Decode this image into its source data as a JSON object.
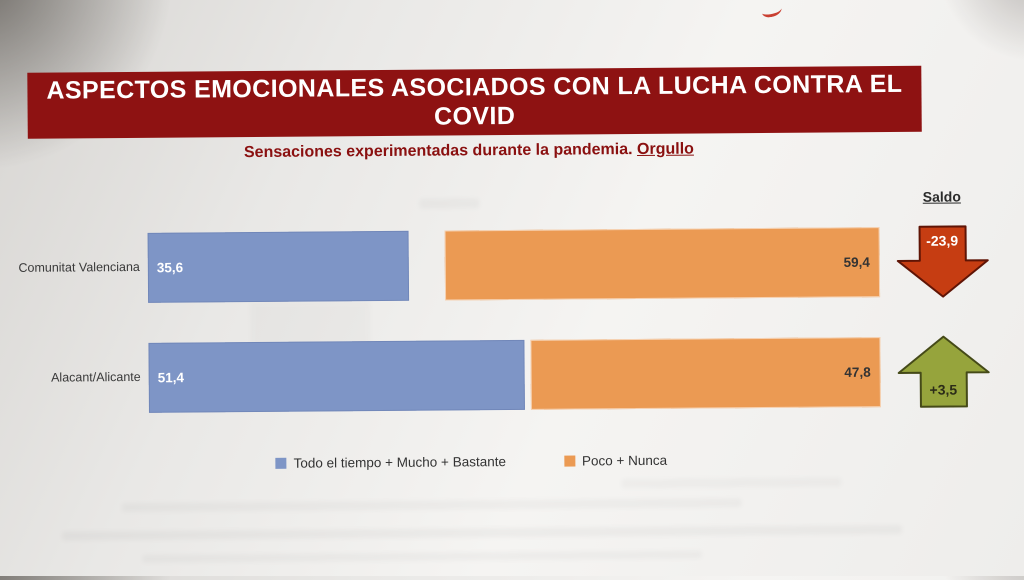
{
  "title": "ASPECTOS EMOCIONALES ASOCIADOS CON LA LUCHA CONTRA EL COVID",
  "subtitle": {
    "text": "Sensaciones experimentadas durante la pandemia. ",
    "highlight": "Orgullo"
  },
  "colors": {
    "title_bg": "#8e1212",
    "title_text": "#ffffff",
    "subtitle_text": "#8a1010",
    "blue_bar": "#7e95c6",
    "orange_bar": "#eb9a53",
    "down_arrow": "#c63d12",
    "up_arrow": "#96a43c"
  },
  "chart_data": {
    "type": "bar",
    "orientation": "horizontal",
    "title": "Sensaciones experimentadas durante la pandemia. Orgullo",
    "categories": [
      "Comunitat Valenciana",
      "Alacant/Alicante"
    ],
    "series": [
      {
        "name": "Todo el tiempo + Mucho + Bastante",
        "color": "#7e95c6",
        "values": [
          35.6,
          51.4
        ],
        "display_labels": [
          "35,6",
          "51,4"
        ]
      },
      {
        "name": "Poco + Nunca",
        "color": "#eb9a53",
        "values": [
          59.4,
          47.8
        ],
        "display_labels": [
          "59,4",
          "47,8"
        ]
      }
    ],
    "xlim": [
      0,
      100
    ],
    "layout_hint": "first series left-aligned, second series right-aligned on a 0-100 track; gap = no answer",
    "saldo": {
      "label": "Saldo",
      "items": [
        {
          "category": "Comunitat Valenciana",
          "value": -23.9,
          "display": "-23,9",
          "direction": "down",
          "color": "#c63d12"
        },
        {
          "category": "Alacant/Alicante",
          "value": 3.5,
          "display": "+3,5",
          "direction": "up",
          "color": "#96a43c"
        }
      ]
    }
  },
  "legend": {
    "items": [
      {
        "label": "Todo el tiempo + Mucho + Bastante",
        "color": "#7e95c6"
      },
      {
        "label": "Poco + Nunca",
        "color": "#eb9a53"
      }
    ]
  }
}
